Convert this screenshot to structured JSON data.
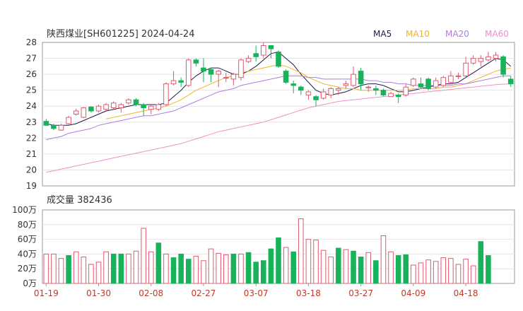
{
  "chart_data": [
    {
      "type": "candlestick",
      "title": "陕西煤业[SH601225] 2024-04-24",
      "legend": [
        {
          "name": "MA5",
          "color": "#1a1a4a"
        },
        {
          "name": "MA10",
          "color": "#f0b429"
        },
        {
          "name": "MA20",
          "color": "#b07de0"
        },
        {
          "name": "MA60",
          "color": "#f28fc8"
        }
      ],
      "legend_placement": "top-right",
      "ylim": [
        19,
        28
      ],
      "yticks": [
        "28",
        "27",
        "26",
        "25",
        "24",
        "23",
        "22",
        "21",
        "20",
        "19"
      ],
      "colors": {
        "up": "#e05a6f",
        "down": "#17b35a"
      },
      "candles": [
        [
          23.05,
          22.8,
          23.2,
          22.75
        ],
        [
          22.8,
          22.6,
          22.9,
          22.5
        ],
        [
          22.5,
          22.8,
          22.9,
          22.45
        ],
        [
          22.9,
          23.3,
          23.4,
          22.85
        ],
        [
          23.5,
          23.7,
          23.85,
          23.4
        ],
        [
          23.3,
          23.9,
          23.95,
          23.25
        ],
        [
          23.95,
          23.7,
          24.0,
          23.6
        ],
        [
          23.7,
          24.0,
          24.1,
          23.6
        ],
        [
          23.8,
          24.1,
          24.2,
          23.7
        ],
        [
          23.9,
          24.2,
          24.3,
          23.8
        ],
        [
          23.9,
          24.1,
          24.2,
          23.6
        ],
        [
          24.2,
          24.4,
          24.5,
          24.1
        ],
        [
          24.4,
          24.1,
          24.5,
          24.0
        ],
        [
          24.1,
          23.9,
          24.2,
          23.4
        ],
        [
          23.8,
          24.0,
          24.1,
          23.5
        ],
        [
          23.8,
          24.1,
          24.2,
          23.7
        ],
        [
          24.1,
          25.4,
          25.5,
          24.0
        ],
        [
          25.4,
          25.6,
          26.2,
          25.3
        ],
        [
          25.6,
          25.5,
          25.8,
          25.2
        ],
        [
          25.3,
          26.9,
          27.0,
          25.2
        ],
        [
          26.9,
          26.7,
          27.0,
          26.5
        ],
        [
          26.4,
          26.2,
          27.0,
          25.5
        ],
        [
          26.3,
          26.0,
          26.4,
          25.5
        ],
        [
          26.0,
          26.2,
          26.3,
          25.2
        ],
        [
          25.8,
          25.8,
          26.1,
          25.5
        ],
        [
          25.7,
          26.0,
          26.1,
          25.3
        ],
        [
          25.8,
          26.9,
          27.0,
          25.6
        ],
        [
          26.8,
          27.0,
          27.2,
          26.7
        ],
        [
          27.3,
          27.1,
          27.8,
          26.8
        ],
        [
          27.2,
          27.8,
          28.0,
          27.0
        ],
        [
          27.8,
          27.6,
          27.8,
          27.0
        ],
        [
          27.4,
          26.5,
          27.5,
          26.4
        ],
        [
          26.2,
          25.5,
          26.3,
          25.4
        ],
        [
          25.4,
          25.3,
          25.6,
          24.8
        ],
        [
          25.2,
          25.0,
          25.3,
          24.7
        ],
        [
          24.7,
          24.9,
          25.0,
          24.4
        ],
        [
          24.6,
          24.4,
          24.7,
          24.0
        ],
        [
          24.5,
          24.9,
          25.1,
          24.4
        ],
        [
          24.7,
          25.1,
          25.2,
          24.5
        ],
        [
          25.0,
          25.1,
          25.2,
          24.7
        ],
        [
          25.3,
          25.4,
          25.6,
          25.1
        ],
        [
          25.3,
          26.0,
          26.5,
          25.2
        ],
        [
          26.2,
          25.4,
          26.4,
          25.0
        ],
        [
          25.2,
          25.2,
          25.3,
          24.9
        ],
        [
          25.1,
          25.0,
          25.3,
          24.7
        ],
        [
          25.0,
          24.7,
          25.1,
          24.6
        ],
        [
          24.6,
          24.8,
          24.9,
          24.6
        ],
        [
          24.7,
          24.6,
          24.8,
          24.2
        ],
        [
          24.7,
          25.2,
          25.4,
          24.6
        ],
        [
          25.3,
          25.7,
          25.8,
          25.2
        ],
        [
          25.4,
          25.2,
          25.8,
          25.1
        ],
        [
          25.7,
          25.1,
          25.8,
          25.0
        ],
        [
          25.2,
          25.6,
          25.8,
          25.1
        ],
        [
          25.3,
          25.8,
          25.9,
          25.2
        ],
        [
          25.5,
          25.9,
          26.2,
          25.4
        ],
        [
          25.9,
          25.9,
          26.1,
          25.7
        ],
        [
          25.9,
          26.7,
          27.1,
          25.8
        ],
        [
          26.7,
          27.0,
          27.2,
          26.6
        ],
        [
          26.8,
          27.0,
          27.2,
          26.5
        ],
        [
          26.9,
          27.1,
          27.4,
          26.8
        ],
        [
          27.0,
          27.2,
          27.4,
          26.8
        ],
        [
          27.1,
          26.0,
          27.2,
          25.8
        ],
        [
          25.7,
          25.4,
          25.9,
          25.2
        ]
      ],
      "ma": {
        "MA5": [
          22.9,
          22.8,
          22.8,
          22.8,
          22.9,
          23.1,
          23.3,
          23.5,
          23.7,
          23.8,
          23.9,
          24.0,
          24.1,
          24.1,
          24.1,
          24.1,
          24.2,
          24.6,
          25.0,
          25.5,
          25.9,
          26.2,
          26.4,
          26.4,
          26.2,
          26.0,
          26.0,
          26.2,
          26.5,
          26.9,
          27.3,
          27.4,
          27.0,
          26.6,
          26.0,
          25.5,
          25.0,
          24.8,
          24.7,
          24.8,
          24.9,
          25.1,
          25.3,
          25.4,
          25.4,
          25.3,
          25.1,
          24.9,
          24.9,
          25.0,
          25.1,
          25.2,
          25.3,
          25.4,
          25.4,
          25.5,
          25.8,
          26.1,
          26.4,
          26.7,
          27.0,
          26.9,
          26.5
        ],
        "MA10": [
          null,
          null,
          null,
          null,
          null,
          null,
          null,
          null,
          23.2,
          23.3,
          23.4,
          23.5,
          23.6,
          23.7,
          23.8,
          23.9,
          24.0,
          24.2,
          24.4,
          24.7,
          25.0,
          25.2,
          25.4,
          25.6,
          25.8,
          25.9,
          26.1,
          26.2,
          26.3,
          26.4,
          26.5,
          26.6,
          26.5,
          26.3,
          26.1,
          25.8,
          25.6,
          25.4,
          25.3,
          25.2,
          25.1,
          25.1,
          25.0,
          25.0,
          25.0,
          25.0,
          25.0,
          25.0,
          25.0,
          25.1,
          25.1,
          25.1,
          25.1,
          25.2,
          25.2,
          25.3,
          25.4,
          25.6,
          25.8,
          26.0,
          26.2,
          26.3,
          26.4
        ],
        "MA20": [
          21.9,
          22.0,
          22.1,
          22.3,
          22.4,
          22.5,
          22.6,
          22.8,
          22.9,
          23.0,
          23.1,
          23.2,
          23.3,
          23.4,
          23.4,
          23.5,
          23.6,
          23.7,
          23.9,
          24.1,
          24.3,
          24.5,
          24.7,
          24.9,
          25.0,
          25.1,
          25.3,
          25.4,
          25.5,
          25.6,
          25.7,
          25.8,
          25.9,
          25.9,
          25.9,
          25.8,
          25.8,
          25.7,
          25.7,
          25.7,
          25.7,
          25.7,
          25.7,
          25.6,
          25.6,
          25.5,
          25.5,
          25.4,
          25.4,
          25.3,
          25.3,
          25.3,
          25.3,
          25.3,
          25.3,
          25.4,
          25.4,
          25.5,
          25.6,
          25.7,
          25.8,
          25.9,
          25.9
        ],
        "MA60": [
          19.85,
          19.95,
          20.05,
          20.15,
          20.25,
          20.35,
          20.45,
          20.55,
          20.65,
          20.75,
          20.85,
          20.95,
          21.05,
          21.15,
          21.25,
          21.35,
          21.45,
          21.55,
          21.65,
          21.8,
          21.95,
          22.1,
          22.25,
          22.4,
          22.5,
          22.6,
          22.7,
          22.8,
          22.9,
          23.0,
          23.15,
          23.3,
          23.45,
          23.6,
          23.75,
          23.9,
          24.0,
          24.1,
          24.2,
          24.3,
          24.35,
          24.4,
          24.45,
          24.5,
          24.55,
          24.6,
          24.65,
          24.7,
          24.75,
          24.8,
          24.85,
          24.9,
          24.95,
          25.0,
          25.05,
          25.1,
          25.15,
          25.2,
          25.25,
          25.3,
          25.35,
          25.38,
          25.4
        ]
      }
    },
    {
      "type": "bar",
      "title": "成交量 382436",
      "ylim": [
        0,
        100
      ],
      "yticks": [
        "100万",
        "80万",
        "60万",
        "40万",
        "20万",
        "0万"
      ],
      "xticks": [
        {
          "index": 0,
          "label": "01-19"
        },
        {
          "index": 7,
          "label": "01-30"
        },
        {
          "index": 14,
          "label": "02-08"
        },
        {
          "index": 21,
          "label": "02-27"
        },
        {
          "index": 28,
          "label": "03-07"
        },
        {
          "index": 35,
          "label": "03-18"
        },
        {
          "index": 42,
          "label": "03-27"
        },
        {
          "index": 49,
          "label": "04-09"
        },
        {
          "index": 56,
          "label": "04-18"
        }
      ],
      "values": [
        40,
        40,
        34,
        38,
        43,
        36,
        26,
        29,
        43,
        40,
        40,
        40,
        44,
        75,
        43,
        55,
        40,
        35,
        40,
        33,
        37,
        31,
        47,
        41,
        39,
        40,
        40,
        42,
        29,
        31,
        47,
        62,
        49,
        43,
        88,
        60,
        59,
        45,
        36,
        48,
        46,
        44,
        36,
        42,
        31,
        65,
        43,
        38,
        39,
        25,
        28,
        32,
        30,
        35,
        34,
        26,
        33,
        24,
        57,
        38
      ],
      "candle_offset": 3
    }
  ]
}
